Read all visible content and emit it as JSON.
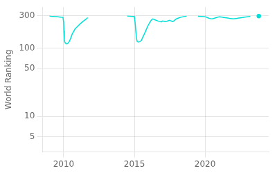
{
  "chart_data": {
    "type": "line",
    "ylabel": "World Ranking",
    "log": "y",
    "xlim": [
      2008.5,
      2024.5
    ],
    "xticks": [
      2010,
      2015,
      2020
    ],
    "ylim": [
      3,
      400
    ],
    "yticks": [
      300,
      100,
      50,
      10,
      5
    ],
    "grid": true,
    "series": [
      {
        "color": "#00e0d8",
        "x": [
          2009.0,
          2009.05,
          2009.1,
          2009.2,
          2009.3,
          2009.4,
          2009.5,
          2009.6,
          2009.65,
          2009.7,
          2009.75,
          2009.8,
          2009.9,
          2009.95,
          2010.0,
          2010.02,
          2010.05,
          2010.1,
          2010.2,
          2010.3,
          2010.4,
          2010.5,
          2010.6,
          2010.8,
          2011.0,
          2011.2,
          2011.4,
          2011.6,
          2011.7
        ],
        "values": [
          295,
          294,
          293,
          292,
          291,
          290,
          289,
          288,
          287,
          286,
          285,
          284,
          283,
          282,
          240,
          180,
          130,
          120,
          115,
          118,
          125,
          140,
          160,
          190,
          210,
          230,
          250,
          268,
          280
        ]
      },
      {
        "color": "#00e0d8",
        "x": [
          2014.5,
          2014.6,
          2014.7,
          2014.8,
          2014.9,
          2015.0,
          2015.05,
          2015.1,
          2015.15,
          2015.2,
          2015.3,
          2015.4,
          2015.5,
          2015.6,
          2015.7,
          2015.8,
          2015.9,
          2016.0,
          2016.1,
          2016.2,
          2016.3,
          2016.5,
          2016.7,
          2016.9,
          2017.0,
          2017.1,
          2017.2,
          2017.3,
          2017.4,
          2017.5,
          2017.6,
          2017.7,
          2017.8,
          2017.9,
          2018.0,
          2018.1,
          2018.2,
          2018.3,
          2018.5,
          2018.7
        ],
        "values": [
          295,
          294,
          293,
          292,
          291,
          290,
          240,
          180,
          140,
          125,
          122,
          125,
          130,
          145,
          160,
          178,
          200,
          220,
          240,
          258,
          268,
          258,
          248,
          242,
          250,
          248,
          245,
          248,
          252,
          256,
          250,
          245,
          250,
          262,
          270,
          275,
          280,
          284,
          290,
          294
        ]
      },
      {
        "color": "#00e0d8",
        "x": [
          2019.5,
          2019.7,
          2019.9,
          2020.0,
          2020.1,
          2020.2,
          2020.3,
          2020.4,
          2020.5,
          2020.6,
          2020.7,
          2020.8,
          2020.9,
          2021.0,
          2021.2,
          2021.3,
          2021.4,
          2021.5,
          2021.6,
          2021.7,
          2021.8,
          2021.9,
          2022.0,
          2022.2,
          2022.4,
          2022.6,
          2022.8,
          2023.0,
          2023.2
        ],
        "values": [
          293,
          291,
          289,
          288,
          284,
          278,
          273,
          270,
          268,
          272,
          276,
          280,
          284,
          288,
          284,
          282,
          280,
          278,
          276,
          274,
          272,
          270,
          268,
          272,
          276,
          280,
          284,
          288,
          292
        ]
      },
      {
        "color": "#00e0d8",
        "x": [
          2023.8
        ],
        "values": [
          295
        ]
      }
    ]
  }
}
